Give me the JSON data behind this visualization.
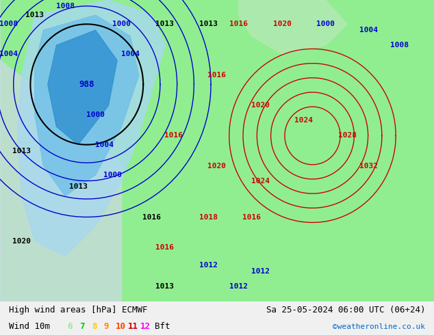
{
  "title_left": "High wind areas [hPa] ECMWF",
  "title_right": "Sa 25-05-2024 06:00 UTC (06+24)",
  "legend_label": "Wind 10m",
  "bft_label": "Bft",
  "bft_numbers": [
    "6",
    "7",
    "8",
    "9",
    "10",
    "11",
    "12"
  ],
  "bft_colors": [
    "#90ee90",
    "#00cc00",
    "#ffcc00",
    "#ff8800",
    "#ff4400",
    "#cc0000",
    "#ff00ff"
  ],
  "watermark": "©weatheronline.co.uk",
  "watermark_color": "#0066cc",
  "bg_color": "#f0f0f0",
  "map_bg": "#90ee90",
  "label_bar_height": 0.1,
  "label_bar_color": "#e8e8e8",
  "map_image_color": "#7ec87e"
}
